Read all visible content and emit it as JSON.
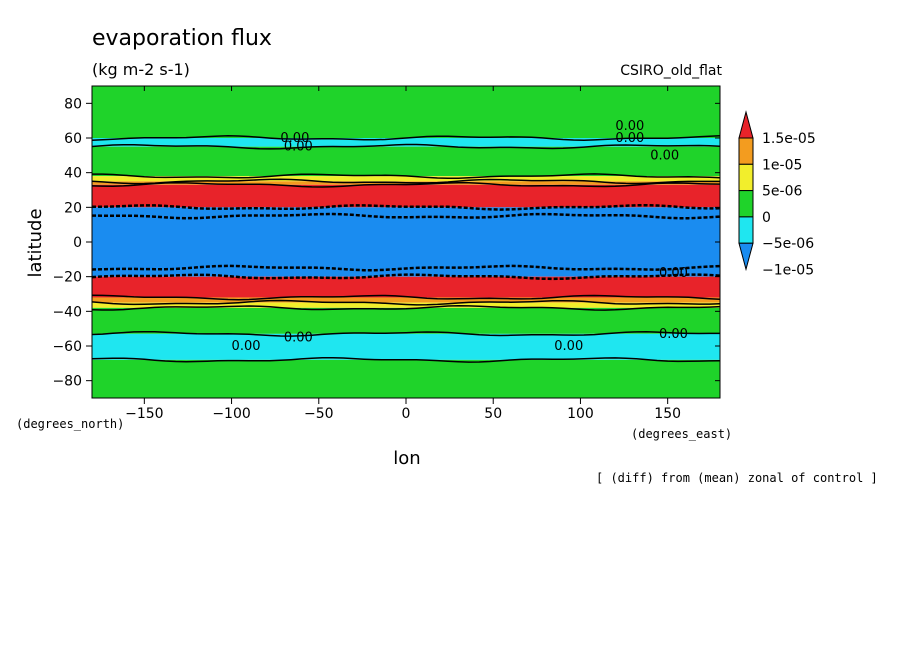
{
  "chart_data": {
    "type": "heatmap",
    "title": "evaporation flux",
    "units": "(kg m-2 s-1)",
    "model": "CSIRO_old_flat",
    "xlabel": "lon",
    "ylabel": "latitude",
    "x_units": "(degrees_east)",
    "y_units": "(degrees_north)",
    "note": "[ (diff) from (mean) zonal of control ]",
    "xlim": [
      -180,
      180
    ],
    "ylim": [
      -90,
      90
    ],
    "x_ticks": [
      -150,
      -100,
      -50,
      0,
      50,
      100,
      150
    ],
    "y_ticks": [
      80,
      60,
      40,
      20,
      0,
      -20,
      -40,
      -60,
      -80
    ],
    "colorbar": {
      "levels": [
        "1.5e-05",
        "1e-05",
        "5e-06",
        "0",
        "-5e-06",
        "-1e-05"
      ],
      "colors": [
        "#e8232a",
        "#f39c1f",
        "#f2ee2c",
        "#1fd32a",
        "#1fe6f0",
        "#1a8cf0"
      ]
    },
    "zonal_bands": [
      {
        "lat_from": 90,
        "lat_to": 60,
        "value": 2e-06
      },
      {
        "lat_from": 60,
        "lat_to": 55,
        "value": -3e-06
      },
      {
        "lat_from": 55,
        "lat_to": 38,
        "value": 2e-06
      },
      {
        "lat_from": 38,
        "lat_to": 35,
        "value": 6e-06
      },
      {
        "lat_from": 35,
        "lat_to": 33,
        "value": 1.2e-05
      },
      {
        "lat_from": 33,
        "lat_to": 20,
        "value": 1.6e-05
      },
      {
        "lat_from": 20,
        "lat_to": 15,
        "value": -1.2e-05
      },
      {
        "lat_from": 15,
        "lat_to": -15,
        "value": -1.5e-05
      },
      {
        "lat_from": -15,
        "lat_to": -20,
        "value": -1.2e-05
      },
      {
        "lat_from": -20,
        "lat_to": -32,
        "value": 1.6e-05
      },
      {
        "lat_from": -32,
        "lat_to": -35,
        "value": 1.2e-05
      },
      {
        "lat_from": -35,
        "lat_to": -38,
        "value": 6e-06
      },
      {
        "lat_from": -38,
        "lat_to": -53,
        "value": 2e-06
      },
      {
        "lat_from": -53,
        "lat_to": -68,
        "value": -3e-06
      },
      {
        "lat_from": -68,
        "lat_to": -90,
        "value": 2e-06
      }
    ],
    "contour_labels": [
      {
        "text": "0.00",
        "lon": -72,
        "lat": 60
      },
      {
        "text": "0.00",
        "lon": -70,
        "lat": 55
      },
      {
        "text": "0.00",
        "lon": 120,
        "lat": 67
      },
      {
        "text": "0.00",
        "lon": 120,
        "lat": 60
      },
      {
        "text": "0.00",
        "lon": 140,
        "lat": 50
      },
      {
        "text": "0.00",
        "lon": -70,
        "lat": -55
      },
      {
        "text": "0.00",
        "lon": -100,
        "lat": -60
      },
      {
        "text": "0.00",
        "lon": 85,
        "lat": -60
      },
      {
        "text": "0.00",
        "lon": 145,
        "lat": -53
      },
      {
        "text": "0.00",
        "lon": 145,
        "lat": -18
      }
    ],
    "grid": false
  }
}
